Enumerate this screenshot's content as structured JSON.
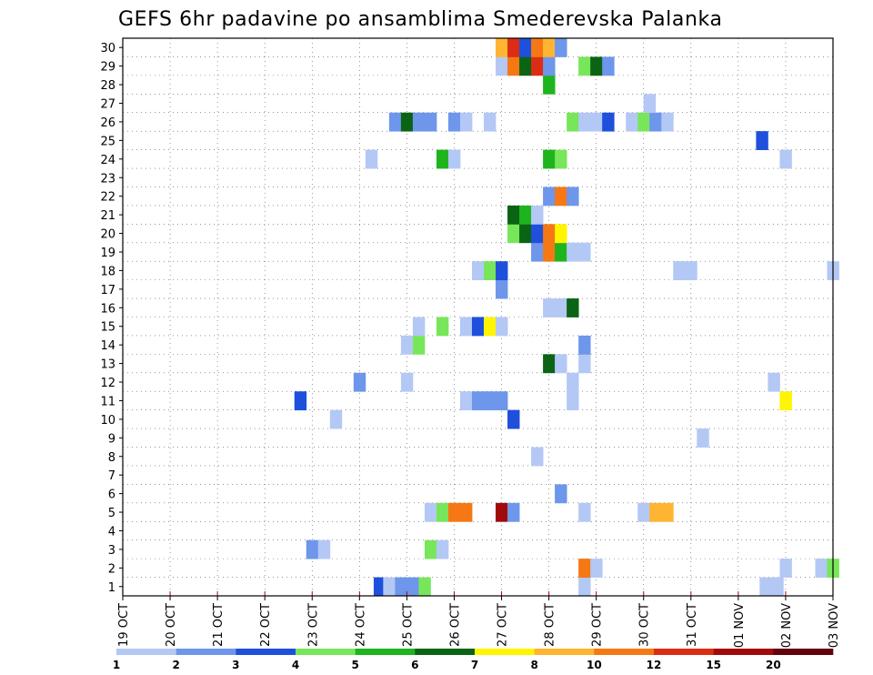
{
  "chart_data": {
    "type": "heatmap",
    "title": "GEFS 6hr padavine po ansamblima Smederevska Palanka",
    "x_tick_labels": [
      "19 OCT",
      "20 OCT",
      "21 OCT",
      "22 OCT",
      "23 OCT",
      "24 OCT",
      "25 OCT",
      "26 OCT",
      "27 OCT",
      "28 OCT",
      "29 OCT",
      "30 OCT",
      "31 OCT",
      "01 NOV",
      "02 NOV",
      "03 NOV"
    ],
    "x_steps_per_day": 4,
    "x_range_steps": [
      0,
      60
    ],
    "y_tick_labels": [
      "1",
      "2",
      "3",
      "4",
      "5",
      "6",
      "7",
      "8",
      "9",
      "10",
      "11",
      "12",
      "13",
      "14",
      "15",
      "16",
      "17",
      "18",
      "19",
      "20",
      "21",
      "22",
      "23",
      "24",
      "25",
      "26",
      "27",
      "28",
      "29",
      "30"
    ],
    "y_range_members": [
      0,
      30
    ],
    "grid": true,
    "legend": {
      "placement": "bottom",
      "levels": [
        "1",
        "2",
        "3",
        "4",
        "5",
        "6",
        "7",
        "8",
        "10",
        "12",
        "15",
        "20"
      ],
      "colors": [
        "#b4c8f5",
        "#6e96eb",
        "#1e50dc",
        "#78e65a",
        "#1eb41e",
        "#0a6414",
        "#fff500",
        "#ffb432",
        "#f57814",
        "#dc2d14",
        "#a00a0a",
        "#64000a"
      ]
    },
    "cells": [
      {
        "member": 0,
        "step": 21.2,
        "color": "#1e50dc"
      },
      {
        "member": 0,
        "step": 22,
        "color": "#b4c8f5"
      },
      {
        "member": 0,
        "step": 23,
        "color": "#6e96eb"
      },
      {
        "member": 0,
        "step": 24,
        "color": "#6e96eb"
      },
      {
        "member": 0,
        "step": 25,
        "color": "#78e65a"
      },
      {
        "member": 0,
        "step": 38.5,
        "color": "#b4c8f5"
      },
      {
        "member": 0,
        "step": 53.8,
        "color": "#b4c8f5"
      },
      {
        "member": 0,
        "step": 54.8,
        "color": "#b4c8f5"
      },
      {
        "member": 1,
        "step": 38.5,
        "color": "#f57814"
      },
      {
        "member": 1,
        "step": 39.5,
        "color": "#b4c8f5"
      },
      {
        "member": 1,
        "step": 55.5,
        "color": "#b4c8f5"
      },
      {
        "member": 1,
        "step": 58.5,
        "color": "#b4c8f5"
      },
      {
        "member": 1,
        "step": 59.5,
        "color": "#78e65a"
      },
      {
        "member": 2,
        "step": 15.5,
        "color": "#6e96eb"
      },
      {
        "member": 2,
        "step": 16.5,
        "color": "#b4c8f5"
      },
      {
        "member": 2,
        "step": 25.5,
        "color": "#78e65a"
      },
      {
        "member": 2,
        "step": 26.5,
        "color": "#b4c8f5"
      },
      {
        "member": 4,
        "step": 25.5,
        "color": "#b4c8f5"
      },
      {
        "member": 4,
        "step": 26.5,
        "color": "#78e65a"
      },
      {
        "member": 4,
        "step": 27.5,
        "color": "#f57814"
      },
      {
        "member": 4,
        "step": 28.5,
        "color": "#f57814"
      },
      {
        "member": 4,
        "step": 31.5,
        "color": "#a00a0a"
      },
      {
        "member": 4,
        "step": 32.5,
        "color": "#6e96eb"
      },
      {
        "member": 4,
        "step": 38.5,
        "color": "#b4c8f5"
      },
      {
        "member": 4,
        "step": 43.5,
        "color": "#b4c8f5"
      },
      {
        "member": 4,
        "step": 44.5,
        "color": "#ffb432"
      },
      {
        "member": 4,
        "step": 45.5,
        "color": "#ffb432"
      },
      {
        "member": 5,
        "step": 36.5,
        "color": "#6e96eb"
      },
      {
        "member": 7,
        "step": 34.5,
        "color": "#b4c8f5"
      },
      {
        "member": 8,
        "step": 48.5,
        "color": "#b4c8f5"
      },
      {
        "member": 9,
        "step": 17.5,
        "color": "#b4c8f5"
      },
      {
        "member": 9,
        "step": 32.5,
        "color": "#1e50dc"
      },
      {
        "member": 10,
        "step": 14.5,
        "color": "#1e50dc"
      },
      {
        "member": 10,
        "step": 28.5,
        "color": "#b4c8f5"
      },
      {
        "member": 10,
        "step": 29.5,
        "color": "#6e96eb"
      },
      {
        "member": 10,
        "step": 30.5,
        "color": "#6e96eb"
      },
      {
        "member": 10,
        "step": 31.5,
        "color": "#6e96eb"
      },
      {
        "member": 10,
        "step": 37.5,
        "color": "#b4c8f5"
      },
      {
        "member": 10,
        "step": 55.5,
        "color": "#fff500"
      },
      {
        "member": 11,
        "step": 19.5,
        "color": "#6e96eb"
      },
      {
        "member": 11,
        "step": 23.5,
        "color": "#b4c8f5"
      },
      {
        "member": 11,
        "step": 37.5,
        "color": "#b4c8f5"
      },
      {
        "member": 11,
        "step": 54.5,
        "color": "#b4c8f5"
      },
      {
        "member": 12,
        "step": 35.5,
        "color": "#0a6414"
      },
      {
        "member": 12,
        "step": 36.5,
        "color": "#b4c8f5"
      },
      {
        "member": 12,
        "step": 38.5,
        "color": "#b4c8f5"
      },
      {
        "member": 13,
        "step": 23.5,
        "color": "#b4c8f5"
      },
      {
        "member": 13,
        "step": 24.5,
        "color": "#78e65a"
      },
      {
        "member": 13,
        "step": 38.5,
        "color": "#6e96eb"
      },
      {
        "member": 14,
        "step": 24.5,
        "color": "#b4c8f5"
      },
      {
        "member": 14,
        "step": 26.5,
        "color": "#78e65a"
      },
      {
        "member": 14,
        "step": 28.5,
        "color": "#b4c8f5"
      },
      {
        "member": 14,
        "step": 29.5,
        "color": "#1e50dc"
      },
      {
        "member": 14,
        "step": 30.5,
        "color": "#fff500"
      },
      {
        "member": 14,
        "step": 31.5,
        "color": "#b4c8f5"
      },
      {
        "member": 15,
        "step": 35.5,
        "color": "#b4c8f5"
      },
      {
        "member": 15,
        "step": 36.5,
        "color": "#b4c8f5"
      },
      {
        "member": 15,
        "step": 37.5,
        "color": "#0a6414"
      },
      {
        "member": 16,
        "step": 31.5,
        "color": "#6e96eb"
      },
      {
        "member": 17,
        "step": 29.5,
        "color": "#b4c8f5"
      },
      {
        "member": 17,
        "step": 30.5,
        "color": "#78e65a"
      },
      {
        "member": 17,
        "step": 31.5,
        "color": "#1e50dc"
      },
      {
        "member": 17,
        "step": 46.5,
        "color": "#b4c8f5"
      },
      {
        "member": 17,
        "step": 47.5,
        "color": "#b4c8f5"
      },
      {
        "member": 17,
        "step": 59.5,
        "color": "#b4c8f5"
      },
      {
        "member": 18,
        "step": 34.5,
        "color": "#6e96eb"
      },
      {
        "member": 18,
        "step": 35.5,
        "color": "#f57814"
      },
      {
        "member": 18,
        "step": 36.5,
        "color": "#1eb41e"
      },
      {
        "member": 18,
        "step": 37.5,
        "color": "#b4c8f5"
      },
      {
        "member": 18,
        "step": 38.5,
        "color": "#b4c8f5"
      },
      {
        "member": 19,
        "step": 32.5,
        "color": "#78e65a"
      },
      {
        "member": 19,
        "step": 33.5,
        "color": "#0a6414"
      },
      {
        "member": 19,
        "step": 34.5,
        "color": "#1e50dc"
      },
      {
        "member": 19,
        "step": 35.5,
        "color": "#f57814"
      },
      {
        "member": 19,
        "step": 36.5,
        "color": "#fff500"
      },
      {
        "member": 20,
        "step": 32.5,
        "color": "#0a6414"
      },
      {
        "member": 20,
        "step": 33.5,
        "color": "#1eb41e"
      },
      {
        "member": 20,
        "step": 34.5,
        "color": "#b4c8f5"
      },
      {
        "member": 21,
        "step": 35.5,
        "color": "#6e96eb"
      },
      {
        "member": 21,
        "step": 36.5,
        "color": "#f57814"
      },
      {
        "member": 21,
        "step": 37.5,
        "color": "#6e96eb"
      },
      {
        "member": 23,
        "step": 20.5,
        "color": "#b4c8f5"
      },
      {
        "member": 23,
        "step": 26.5,
        "color": "#1eb41e"
      },
      {
        "member": 23,
        "step": 27.5,
        "color": "#b4c8f5"
      },
      {
        "member": 23,
        "step": 35.5,
        "color": "#1eb41e"
      },
      {
        "member": 23,
        "step": 36.5,
        "color": "#78e65a"
      },
      {
        "member": 23,
        "step": 55.5,
        "color": "#b4c8f5"
      },
      {
        "member": 24,
        "step": 53.5,
        "color": "#1e50dc"
      },
      {
        "member": 25,
        "step": 22.5,
        "color": "#6e96eb"
      },
      {
        "member": 25,
        "step": 23.5,
        "color": "#0a6414"
      },
      {
        "member": 25,
        "step": 24.5,
        "color": "#6e96eb"
      },
      {
        "member": 25,
        "step": 25.5,
        "color": "#6e96eb"
      },
      {
        "member": 25,
        "step": 27.5,
        "color": "#6e96eb"
      },
      {
        "member": 25,
        "step": 28.5,
        "color": "#b4c8f5"
      },
      {
        "member": 25,
        "step": 30.5,
        "color": "#b4c8f5"
      },
      {
        "member": 25,
        "step": 37.5,
        "color": "#78e65a"
      },
      {
        "member": 25,
        "step": 38.5,
        "color": "#b4c8f5"
      },
      {
        "member": 25,
        "step": 39.5,
        "color": "#b4c8f5"
      },
      {
        "member": 25,
        "step": 40.5,
        "color": "#1e50dc"
      },
      {
        "member": 25,
        "step": 42.5,
        "color": "#b4c8f5"
      },
      {
        "member": 25,
        "step": 43.5,
        "color": "#78e65a"
      },
      {
        "member": 25,
        "step": 44.5,
        "color": "#6e96eb"
      },
      {
        "member": 25,
        "step": 45.5,
        "color": "#b4c8f5"
      },
      {
        "member": 26,
        "step": 44,
        "color": "#b4c8f5"
      },
      {
        "member": 27,
        "step": 35.5,
        "color": "#1eb41e"
      },
      {
        "member": 28,
        "step": 31.5,
        "color": "#b4c8f5"
      },
      {
        "member": 28,
        "step": 32.5,
        "color": "#f57814"
      },
      {
        "member": 28,
        "step": 33.5,
        "color": "#0a6414"
      },
      {
        "member": 28,
        "step": 34.5,
        "color": "#dc2d14"
      },
      {
        "member": 28,
        "step": 35.5,
        "color": "#6e96eb"
      },
      {
        "member": 28,
        "step": 38.5,
        "color": "#78e65a"
      },
      {
        "member": 28,
        "step": 39.5,
        "color": "#0a6414"
      },
      {
        "member": 28,
        "step": 40.5,
        "color": "#6e96eb"
      },
      {
        "member": 29,
        "step": 31.5,
        "color": "#ffb432"
      },
      {
        "member": 29,
        "step": 32.5,
        "color": "#dc2d14"
      },
      {
        "member": 29,
        "step": 33.5,
        "color": "#1e50dc"
      },
      {
        "member": 29,
        "step": 34.5,
        "color": "#f57814"
      },
      {
        "member": 29,
        "step": 35.5,
        "color": "#ffb432"
      },
      {
        "member": 29,
        "step": 36.5,
        "color": "#6e96eb"
      }
    ]
  }
}
